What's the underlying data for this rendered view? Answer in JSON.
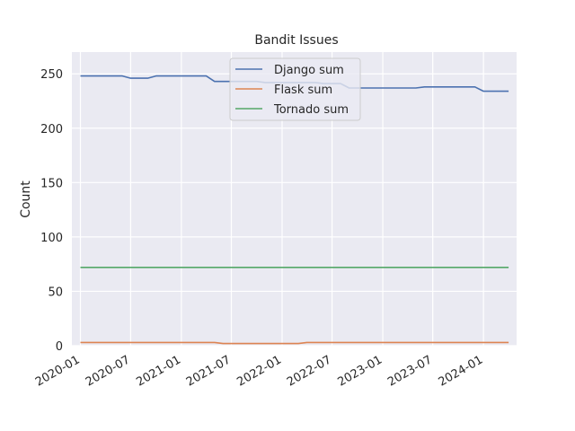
{
  "chart_data": {
    "type": "line",
    "title": "Bandit Issues",
    "xlabel": "",
    "ylabel": "Count",
    "ylim": [
      0,
      270
    ],
    "yticks": [
      0,
      50,
      100,
      150,
      200,
      250
    ],
    "xlim": [
      "2019-12-01",
      "2024-04-30"
    ],
    "xticks": [
      "2020-01",
      "2020-07",
      "2021-01",
      "2021-07",
      "2022-01",
      "2022-07",
      "2023-01",
      "2023-07",
      "2024-01"
    ],
    "grid": true,
    "legend_position": "top-center",
    "series": [
      {
        "name": "Django sum",
        "color": "#4c72b0",
        "points": [
          [
            "2020-01-01",
            248
          ],
          [
            "2020-06-01",
            248
          ],
          [
            "2020-07-01",
            246
          ],
          [
            "2020-09-01",
            246
          ],
          [
            "2020-10-01",
            248
          ],
          [
            "2021-04-01",
            248
          ],
          [
            "2021-05-01",
            243
          ],
          [
            "2021-10-01",
            243
          ],
          [
            "2021-11-01",
            242
          ],
          [
            "2022-05-01",
            242
          ],
          [
            "2022-06-01",
            241
          ],
          [
            "2022-08-01",
            241
          ],
          [
            "2022-09-01",
            237
          ],
          [
            "2023-05-01",
            237
          ],
          [
            "2023-06-01",
            238
          ],
          [
            "2023-12-01",
            238
          ],
          [
            "2024-01-01",
            234
          ],
          [
            "2024-04-01",
            234
          ]
        ]
      },
      {
        "name": "Flask sum",
        "color": "#dd8452",
        "points": [
          [
            "2020-01-01",
            3
          ],
          [
            "2021-05-01",
            3
          ],
          [
            "2021-06-01",
            2
          ],
          [
            "2022-03-01",
            2
          ],
          [
            "2022-04-01",
            3
          ],
          [
            "2024-04-01",
            3
          ]
        ]
      },
      {
        "name": "Tornado sum",
        "color": "#55a868",
        "points": [
          [
            "2020-01-01",
            72
          ],
          [
            "2024-04-01",
            72
          ]
        ]
      }
    ]
  }
}
